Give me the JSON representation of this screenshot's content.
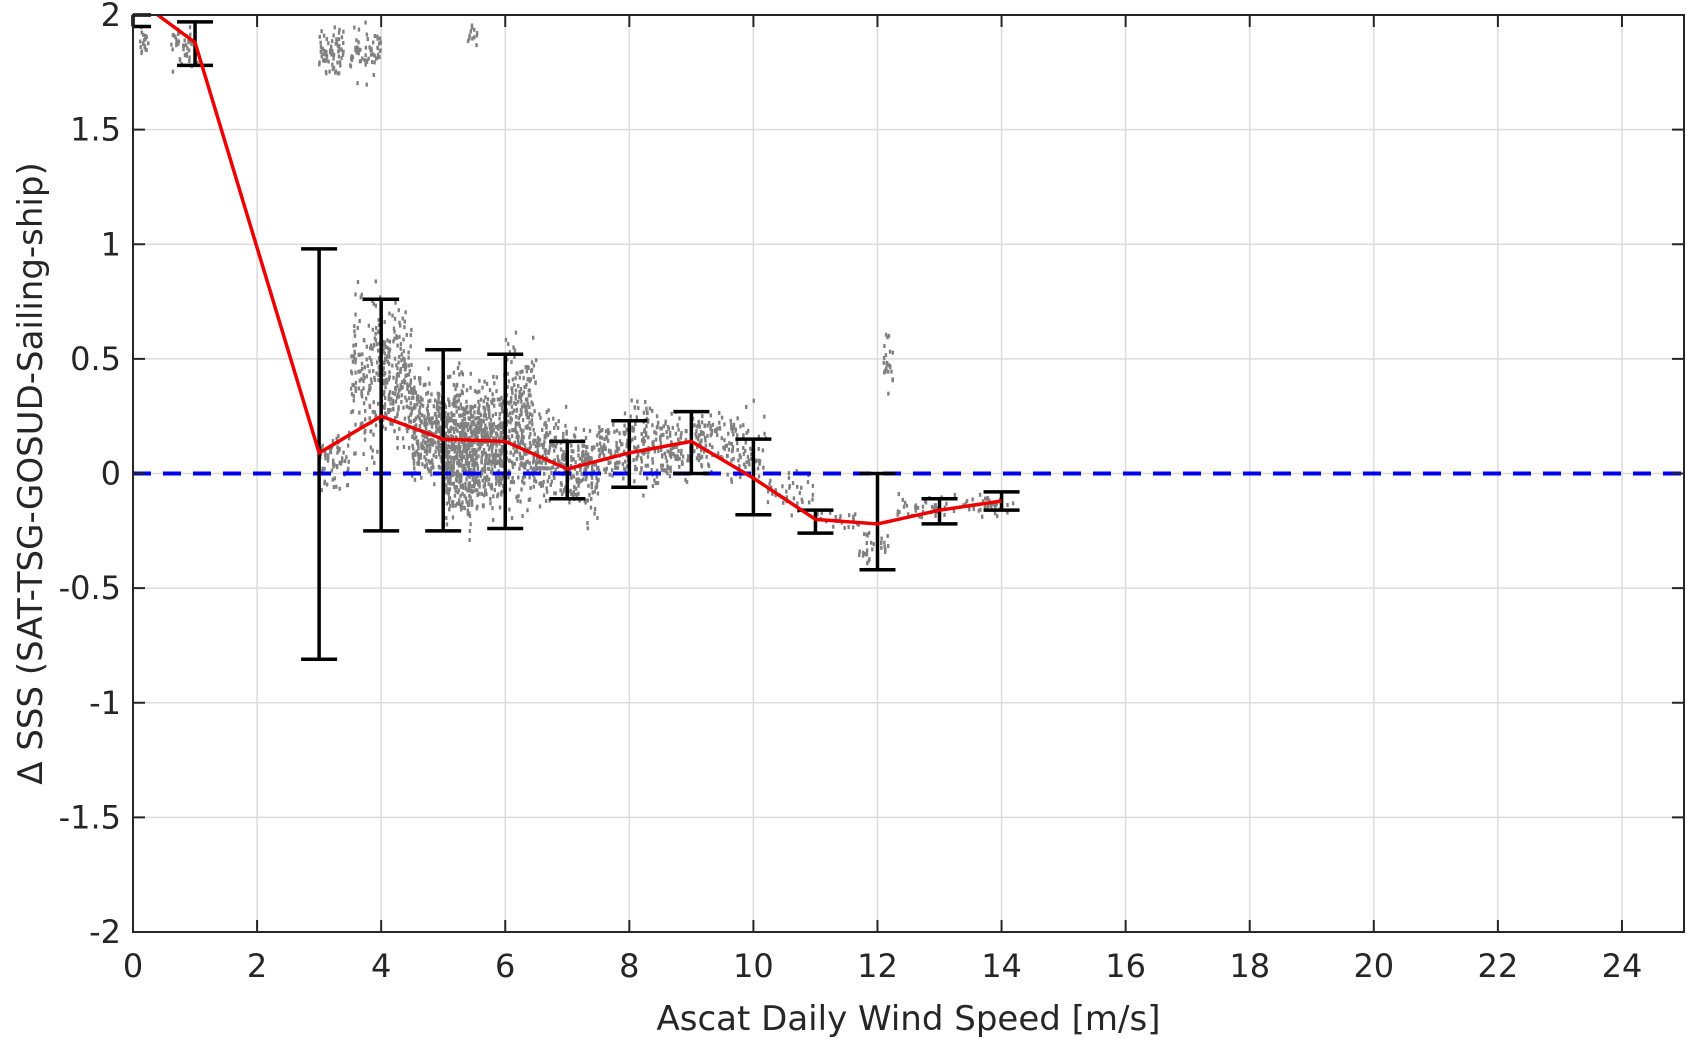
{
  "chart_data": {
    "type": "scatter",
    "title": "",
    "xlabel": "Ascat Daily Wind Speed [m/s]",
    "ylabel": "Δ SSS (SAT-TSG-GOSUD-Sailing-ship)",
    "xlim": [
      0,
      25
    ],
    "ylim": [
      -2,
      2
    ],
    "xticks": [
      0,
      2,
      4,
      6,
      8,
      10,
      12,
      14,
      16,
      18,
      20,
      22,
      24
    ],
    "yticks": [
      -2,
      -1.5,
      -1,
      -0.5,
      0,
      0.5,
      1,
      1.5,
      2
    ],
    "xtick_labels": [
      "0",
      "2",
      "4",
      "6",
      "8",
      "10",
      "12",
      "14",
      "16",
      "18",
      "20",
      "22",
      "24"
    ],
    "ytick_labels": [
      "-2",
      "-1.5",
      "-1",
      "-0.5",
      "0",
      "0.5",
      "1",
      "1.5",
      "2"
    ],
    "grid": true,
    "reference_line": {
      "y": 0,
      "style": "dashed",
      "color": "#0000ee"
    },
    "colors": {
      "scatter": "#808080",
      "mean_line": "#ee0000",
      "error_bars": "#000000",
      "axes": "#262626",
      "grid": "#dcdcdc"
    },
    "mean_line": {
      "x": [
        0.4,
        1,
        3,
        4,
        5,
        6,
        7,
        8,
        9,
        10,
        11,
        12,
        13,
        14
      ],
      "y": [
        2.0,
        1.88,
        0.09,
        0.25,
        0.15,
        0.14,
        0.02,
        0.09,
        0.14,
        -0.02,
        -0.2,
        -0.22,
        -0.16,
        -0.12
      ]
    },
    "error_bars": [
      {
        "x": 0,
        "low": 1.95,
        "high": 2.0
      },
      {
        "x": 1,
        "low": 1.78,
        "high": 1.97
      },
      {
        "x": 3,
        "low": -0.81,
        "high": 0.98
      },
      {
        "x": 4,
        "low": -0.25,
        "high": 0.76
      },
      {
        "x": 5,
        "low": -0.25,
        "high": 0.54
      },
      {
        "x": 6,
        "low": -0.24,
        "high": 0.52
      },
      {
        "x": 7,
        "low": -0.11,
        "high": 0.14
      },
      {
        "x": 8,
        "low": -0.06,
        "high": 0.23
      },
      {
        "x": 9,
        "low": 0.0,
        "high": 0.27
      },
      {
        "x": 10,
        "low": -0.18,
        "high": 0.15
      },
      {
        "x": 11,
        "low": -0.26,
        "high": -0.16
      },
      {
        "x": 12,
        "low": -0.42,
        "high": 0.0
      },
      {
        "x": 13,
        "low": -0.22,
        "high": -0.11
      },
      {
        "x": 14,
        "low": -0.16,
        "high": -0.08
      }
    ],
    "scatter_clusters": [
      {
        "x": [
          0.1,
          0.25
        ],
        "y": [
          1.78,
          1.98
        ],
        "n": 20
      },
      {
        "x": [
          0.6,
          1.05
        ],
        "y": [
          1.72,
          1.98
        ],
        "n": 45
      },
      {
        "x": [
          3.0,
          3.4
        ],
        "y": [
          1.7,
          1.99
        ],
        "n": 70
      },
      {
        "x": [
          3.5,
          4.0
        ],
        "y": [
          1.67,
          2.0
        ],
        "n": 60
      },
      {
        "x": [
          5.4,
          5.55
        ],
        "y": [
          1.85,
          2.0
        ],
        "n": 12
      },
      {
        "x": [
          3.0,
          3.5
        ],
        "y": [
          -0.15,
          0.25
        ],
        "n": 70
      },
      {
        "x": [
          3.5,
          4.0
        ],
        "y": [
          -0.05,
          0.95
        ],
        "n": 150
      },
      {
        "x": [
          4.0,
          4.5
        ],
        "y": [
          0.0,
          0.8
        ],
        "n": 200
      },
      {
        "x": [
          4.5,
          5.0
        ],
        "y": [
          -0.15,
          0.5
        ],
        "n": 260
      },
      {
        "x": [
          5.0,
          5.5
        ],
        "y": [
          -0.35,
          0.55
        ],
        "n": 480
      },
      {
        "x": [
          5.5,
          6.0
        ],
        "y": [
          -0.25,
          0.5
        ],
        "n": 380
      },
      {
        "x": [
          6.0,
          6.5
        ],
        "y": [
          -0.3,
          0.68
        ],
        "n": 260
      },
      {
        "x": [
          6.5,
          7.0
        ],
        "y": [
          -0.2,
          0.35
        ],
        "n": 160
      },
      {
        "x": [
          7.0,
          7.5
        ],
        "y": [
          -0.28,
          0.3
        ],
        "n": 150
      },
      {
        "x": [
          7.5,
          8.0
        ],
        "y": [
          -0.1,
          0.3
        ],
        "n": 90
      },
      {
        "x": [
          8.0,
          8.5
        ],
        "y": [
          -0.15,
          0.42
        ],
        "n": 110
      },
      {
        "x": [
          8.5,
          9.0
        ],
        "y": [
          -0.1,
          0.3
        ],
        "n": 90
      },
      {
        "x": [
          9.0,
          9.5
        ],
        "y": [
          -0.05,
          0.35
        ],
        "n": 80
      },
      {
        "x": [
          9.5,
          10.2
        ],
        "y": [
          -0.15,
          0.35
        ],
        "n": 80
      },
      {
        "x": [
          10.2,
          11.0
        ],
        "y": [
          -0.2,
          0.05
        ],
        "n": 40
      },
      {
        "x": [
          11.0,
          11.7
        ],
        "y": [
          -0.25,
          -0.15
        ],
        "n": 25
      },
      {
        "x": [
          11.7,
          12.2
        ],
        "y": [
          -0.45,
          -0.2
        ],
        "n": 30
      },
      {
        "x": [
          12.1,
          12.25
        ],
        "y": [
          0.3,
          0.68
        ],
        "n": 25
      },
      {
        "x": [
          12.3,
          13.2
        ],
        "y": [
          -0.22,
          -0.08
        ],
        "n": 40
      },
      {
        "x": [
          13.2,
          14.2
        ],
        "y": [
          -0.2,
          -0.08
        ],
        "n": 40
      }
    ]
  }
}
